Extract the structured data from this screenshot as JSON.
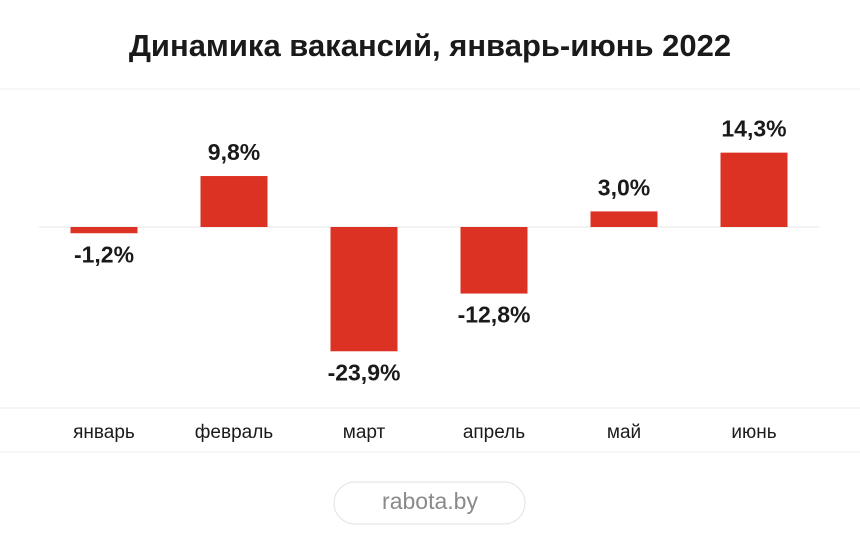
{
  "chart_data": {
    "type": "bar",
    "title": "Динамика вакансий, январь-июнь 2022",
    "categories": [
      "январь",
      "февраль",
      "март",
      "апрель",
      "май",
      "июнь"
    ],
    "values": [
      -1.2,
      9.8,
      -23.9,
      -12.8,
      3.0,
      14.3
    ],
    "value_labels": [
      "-1,2%",
      "9,8%",
      "-23,9%",
      "-12,8%",
      "3,0%",
      "14,3%"
    ],
    "color": "#dc3224",
    "ylim": [
      -30,
      25
    ],
    "source": "rabota.by"
  }
}
